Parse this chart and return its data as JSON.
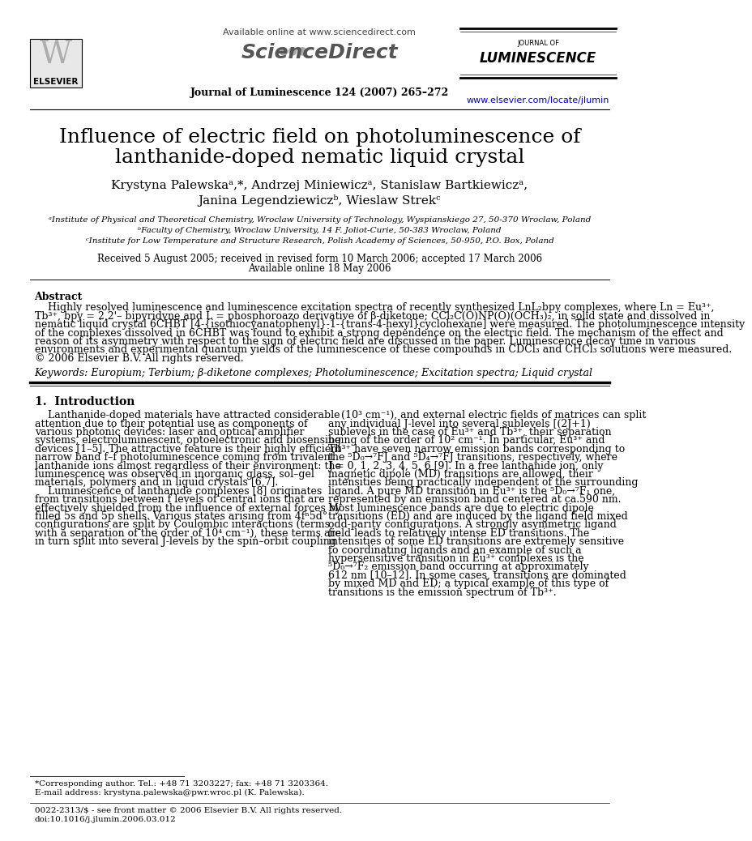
{
  "title_line1": "Influence of electric field on photoluminescence of",
  "title_line2": "lanthanide-doped nematic liquid crystal",
  "authors_line1": "Krystyna Palewskaᵃ,*, Andrzej Miniewiczᵃ, Stanislaw Bartkiewiczᵃ,",
  "authors_line2": "Janina Legendziewiczᵇ, Wieslaw Strekᶜ",
  "affil_a": "ᵃInstitute of Physical and Theoretical Chemistry, Wroclaw University of Technology, Wyspianskiego 27, 50-370 Wroclaw, Poland",
  "affil_b": "ᵇFaculty of Chemistry, Wroclaw University, 14 F. Joliot-Curie, 50-383 Wroclaw, Poland",
  "affil_c": "ᶜInstitute for Low Temperature and Structure Research, Polish Academy of Sciences, 50-950, P.O. Box, Poland",
  "received": "Received 5 August 2005; received in revised form 10 March 2006; accepted 17 March 2006",
  "available": "Available online 18 May 2006",
  "journal_header": "Journal of Luminescence 124 (2007) 265–272",
  "available_online": "Available online at www.sciencedirect.com",
  "journal_url": "www.elsevier.com/locate/jlumin",
  "abstract_title": "Abstract",
  "keywords": "Keywords: Europium; Terbium; β-diketone complexes; Photoluminescence; Excitation spectra; Liquid crystal",
  "section1_title": "1.  Introduction",
  "footnote_corresp": "*Corresponding author. Tel.: +48 71 3203227; fax: +48 71 3203364.",
  "footnote_email": "E-mail address: krystyna.palewska@pwr.wroc.pl (K. Palewska).",
  "footer_issn": "0022-2313/$ - see front matter © 2006 Elsevier B.V. All rights reserved.",
  "footer_doi": "doi:10.1016/j.jlumin.2006.03.012",
  "bg_color": "#ffffff",
  "text_color": "#000000",
  "link_color": "#0000cc",
  "abstract_lines": [
    "    Highly resolved luminescence and luminescence excitation spectra of recently synthesized LnL₂bpy complexes, where Ln = Eu³⁺,",
    "Tb³⁺, bpy = 2,2'– bipyridyne and L = phosphoroazo derivative of β-diketone; CCl₂C(O)NP(O)(OCH₃)₂, in solid state and dissolved in",
    "nematic liquid crystal 6CHBT [4-{isothiocyanatophenyl}-1-{trans-4-hexyl}cyclohexane] were measured. The photoluminescence intensity",
    "of the complexes dissolved in 6CHBT was found to exhibit a strong dependence on the electric field. The mechanism of the effect and",
    "reason of its asymmetry with respect to the sign of electric field are discussed in the paper. Luminescence decay time in various",
    "environments and experimental quantum yields of the luminescence of these compounds in CDCl₃ and CHCl₃ solutions were measured.",
    "© 2006 Elsevier B.V. All rights reserved."
  ],
  "left_col_lines": [
    "    Lanthanide-doped materials have attracted considerable",
    "attention due to their potential use as components of",
    "various photonic devices: laser and optical amplifier",
    "systems, electroluminescent, optoelectronic and biosensing",
    "devices [1–5]. The attractive feature is their highly efficient",
    "narrow band f–f photoluminescence coming from trivalent",
    "lanthanide ions almost regardless of their environment: the",
    "luminescence was observed in inorganic glass, sol–gel",
    "materials, polymers and in liquid crystals [6,7].",
    "    Luminescence of lanthanide complexes [8] originates",
    "from transitions between f levels of central ions that are",
    "effectively shielded from the influence of external forces by",
    "filled 5s and 5p shells. Various states arising from 4fⁿ5d°",
    "configurations are split by Coulombic interactions (terms",
    "with a separation of the order of 10⁴ cm⁻¹), these terms are",
    "in turn split into several J-levels by the spin–orbit coupling"
  ],
  "right_col_lines": [
    "    (10³ cm⁻¹), and external electric fields of matrices can split",
    "any individual J-level into several sublevels [(2J+1)",
    "sublevels in the case of Eu³⁺ and Tb³⁺, their separation",
    "being of the order of 10² cm⁻¹. In particular, Eu³⁺ and",
    "Tb³⁺ have seven narrow emission bands corresponding to",
    "the ⁵D₀→⁷FJ and ⁵D₄→⁷FJ transitions, respectively, where",
    "J = 0, 1, 2, 3, 4, 5, 6 [9]. In a free lanthanide ion, only",
    "magnetic dipole (MD) transitions are allowed, their",
    "intensities being practically independent of the surrounding",
    "ligand. A pure MD transition in Eu³⁺ is the ⁵D₀→⁷F₁ one,",
    "represented by an emission band centered at ca.590 nm.",
    "Most luminescence bands are due to electric dipole",
    "transitions (ED) and are induced by the ligand field mixed",
    "odd-parity configurations. A strongly asymmetric ligand",
    "field leads to relatively intense ED transitions. The",
    "intensities of some ED transitions are extremely sensitive",
    "to coordinating ligands and an example of such a",
    "hypersensitive transition in Eu³⁺ complexes is the",
    "⁵D₀→⁷F₂ emission band occurring at approximately",
    "612 nm [10–12]. In some cases, transitions are dominated",
    "by mixed MD and ED; a typical example of this type of",
    "transitions is the emission spectrum of Tb³⁺."
  ]
}
